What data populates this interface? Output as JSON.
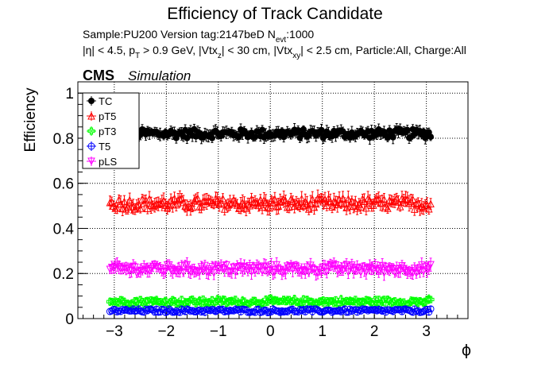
{
  "chart_data": {
    "type": "scatter",
    "title": "Efficiency of Track Candidate",
    "subtitle_sample": "Sample:PU200   Version tag:2147beD  N",
    "subtitle_sample_sub": "evt",
    "subtitle_sample_tail": ":1000",
    "cuts_parts": [
      {
        "t": "|η| < 4.5, p",
        "s": ""
      },
      {
        "t": "T",
        "s": "sub"
      },
      {
        "t": " > 0.9 GeV, |Vtx",
        "s": ""
      },
      {
        "t": "z",
        "s": "sub"
      },
      {
        "t": "| < 30 cm, |Vtx",
        "s": ""
      },
      {
        "t": "xy",
        "s": "sub"
      },
      {
        "t": "| < 2.5 cm, Particle:All, Charge:All",
        "s": ""
      }
    ],
    "cms_label": "CMS",
    "cms_sublabel": "Simulation",
    "xlabel": "ϕ",
    "ylabel": "Efficiency",
    "xlim": [
      -3.7,
      3.8
    ],
    "ylim": [
      0,
      1.05
    ],
    "x_ticks": [
      -3,
      -2,
      -1,
      0,
      1,
      2,
      3
    ],
    "x_tick_labels": [
      "−3",
      "−2",
      "−1",
      "0",
      "1",
      "2",
      "3"
    ],
    "y_ticks": [
      0,
      0.2,
      0.4,
      0.6,
      0.8,
      1
    ],
    "y_tick_labels": [
      "0",
      "0.2",
      "0.4",
      "0.6",
      "0.8",
      "1"
    ],
    "grid": true,
    "legend_position": "top-left",
    "x_range": [
      -3.1,
      3.1
    ],
    "n_points": 180,
    "series": [
      {
        "name": "TC",
        "color": "#000000",
        "marker": "filled-circle",
        "level": 0.82,
        "spread": 0.02,
        "err": 0.022
      },
      {
        "name": "pT5",
        "color": "#ff0000",
        "marker": "open-triangle-up",
        "level": 0.51,
        "spread": 0.025,
        "err": 0.028
      },
      {
        "name": "pT3",
        "color": "#00ff00",
        "marker": "open-cross",
        "level": 0.075,
        "spread": 0.012,
        "err": 0.015
      },
      {
        "name": "T5",
        "color": "#0000ff",
        "marker": "open-circle",
        "level": 0.035,
        "spread": 0.008,
        "err": 0.012
      },
      {
        "name": "pLS",
        "color": "#ff00ff",
        "marker": "open-triangle-down",
        "level": 0.22,
        "spread": 0.02,
        "err": 0.025
      }
    ]
  }
}
